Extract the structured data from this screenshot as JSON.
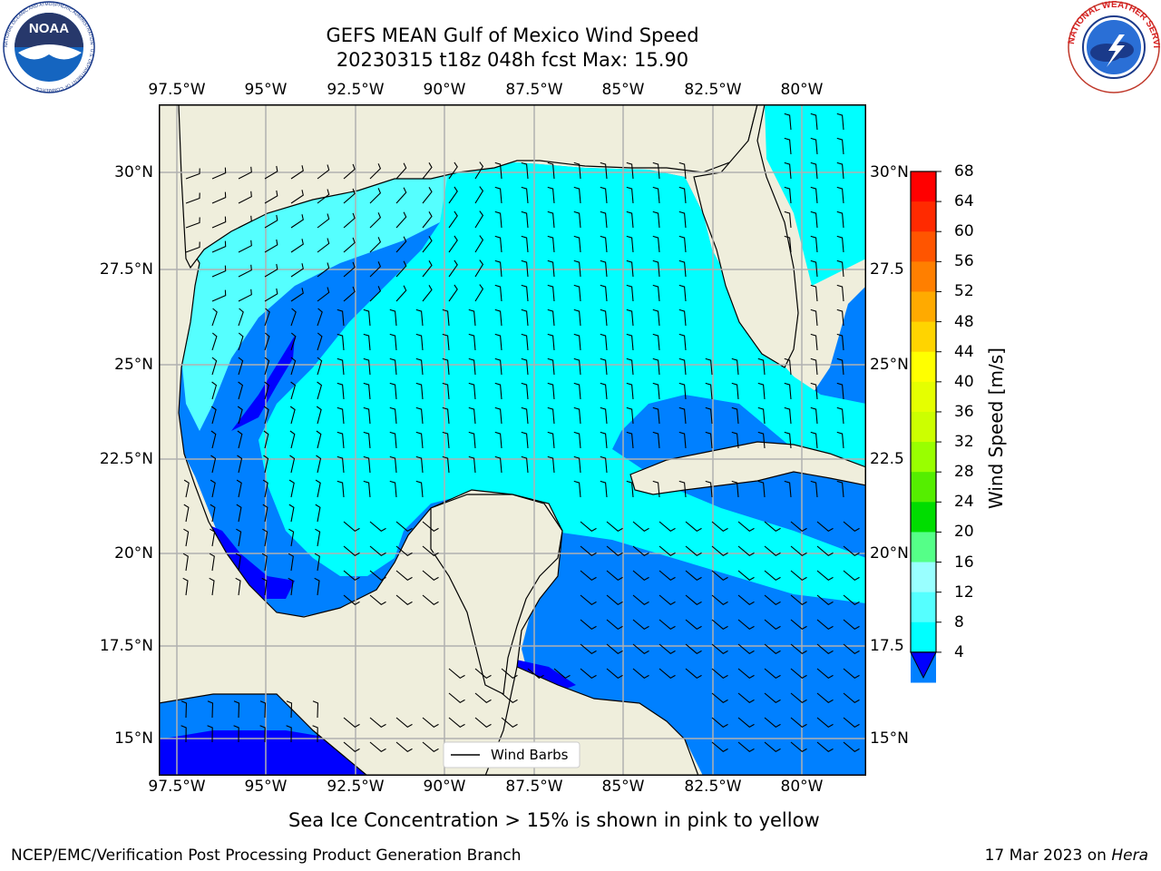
{
  "title": {
    "line1": "GEFS MEAN Gulf of Mexico Wind Speed",
    "line2": "20230315 t18z 048h fcst   Max: 15.90"
  },
  "axes": {
    "lon_labels": [
      "97.5°W",
      "95°W",
      "92.5°W",
      "90°W",
      "87.5°W",
      "85°W",
      "82.5°W",
      "80°W"
    ],
    "lat_labels": [
      "30°N",
      "27.5°N",
      "25°N",
      "22.5°N",
      "20°N",
      "17.5°N",
      "15°N"
    ],
    "lat_labels_right": [
      "30°N",
      "27.5",
      "25°N",
      "22.5",
      "20°N",
      "17.5",
      "15°N"
    ]
  },
  "legend": {
    "label": "Wind Barbs"
  },
  "colorbar": {
    "title": "Wind Speed [m/s]",
    "ticks": [
      "68",
      "64",
      "60",
      "56",
      "52",
      "48",
      "44",
      "40",
      "36",
      "32",
      "28",
      "24",
      "20",
      "16",
      "12",
      "8",
      "4"
    ],
    "colors": [
      "#ff0000",
      "#ff2a00",
      "#ff5500",
      "#ff7f00",
      "#ffaa00",
      "#ffd400",
      "#ffff00",
      "#e5ff00",
      "#ccff00",
      "#99ff00",
      "#55ee00",
      "#00dd00",
      "#55ff88",
      "#99ffff",
      "#55ffff",
      "#00ffff",
      "#0080ff",
      "#0000ff"
    ],
    "extend": "min"
  },
  "colors": {
    "land": "#efeedc",
    "ocean_light": "#00ffff",
    "ocean_mid": "#55ffff",
    "ocean_blue": "#0080ff",
    "ocean_deep": "#0000ff"
  },
  "logos": {
    "noaa": {
      "text": "NOAA",
      "ring_text": "NATIONAL OCEANIC AND ATMOSPHERIC ADMINISTRATION · U.S. DEPARTMENT OF COMMERCE"
    },
    "nws": {
      "ring_text": "NATIONAL WEATHER SERVICE"
    }
  },
  "footer": {
    "sea_ice_note": "Sea Ice Concentration > 15% is shown in pink to yellow",
    "credit": "NCEP/EMC/Verification Post Processing Product Generation Branch",
    "date": "17 Mar 2023 on",
    "hostname": "Hera"
  }
}
